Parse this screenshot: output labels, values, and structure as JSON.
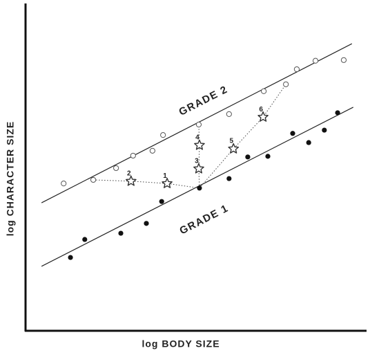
{
  "chart_data": {
    "type": "scatter",
    "xlabel": "log BODY SIZE",
    "ylabel": "log CHARACTER SIZE",
    "xlim": [
      0,
      100
    ],
    "ylim": [
      0,
      100
    ],
    "series": [
      {
        "name": "GRADE 1",
        "marker": "filled",
        "color": "#111111",
        "x": [
          13.2,
          17.4,
          28.0,
          35.5,
          40.0,
          51.1,
          59.8,
          65.3,
          71.2,
          78.5,
          83.2,
          87.8,
          91.7
        ],
        "y": [
          22.4,
          27.9,
          29.8,
          32.8,
          39.5,
          43.6,
          46.5,
          53.1,
          53.3,
          60.3,
          57.5,
          61.3,
          66.6
        ],
        "fit_x": [
          4.7,
          96.3
        ],
        "fit_y": [
          19.7,
          68.3
        ]
      },
      {
        "name": "GRADE 2",
        "marker": "open",
        "color": "#555555",
        "x": [
          11.2,
          19.9,
          26.6,
          31.6,
          37.3,
          40.4,
          50.9,
          59.8,
          70.0,
          76.5,
          79.7,
          85.2,
          93.5
        ],
        "y": [
          45.0,
          46.1,
          49.7,
          53.5,
          55.0,
          59.8,
          63.0,
          66.2,
          73.2,
          75.3,
          79.9,
          82.5,
          82.7
        ],
        "fit_x": [
          4.7,
          95.9
        ],
        "fit_y": [
          39.1,
          87.7
        ]
      },
      {
        "marker": "star",
        "color": "#333333",
        "labels": [
          "1",
          "2",
          "3",
          "4",
          "5",
          "6"
        ],
        "x": [
          41.6,
          31.0,
          50.9,
          51.1,
          61.1,
          69.8
        ],
        "y": [
          45.0,
          45.7,
          49.5,
          56.7,
          55.6,
          65.3
        ]
      }
    ]
  }
}
